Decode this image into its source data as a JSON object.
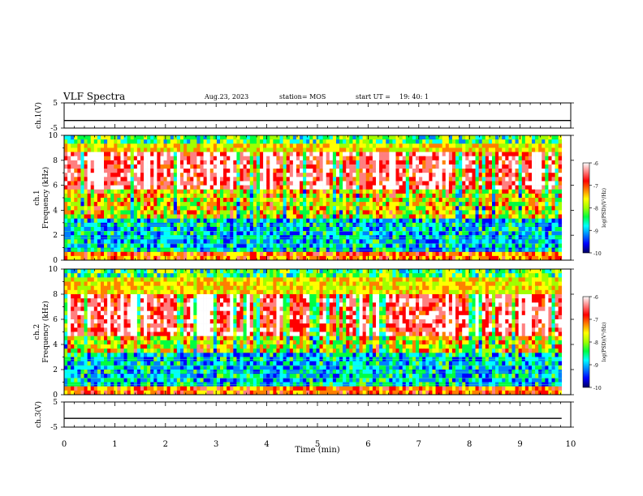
{
  "header": {
    "title": "VLF Spectra",
    "date": "Aug.23, 2023",
    "station": "station= MOS",
    "start_label": "start  UT =",
    "start_time": "19: 40: 1"
  },
  "chart_data": [
    {
      "type": "line",
      "panel": "ch1-waveform",
      "ylabel": "ch.1(V)",
      "ylim": [
        -5,
        5
      ],
      "yticks": [
        "5",
        "-5"
      ],
      "x": [
        0,
        10
      ],
      "values": [
        -2,
        -2
      ]
    },
    {
      "type": "heatmap",
      "panel": "ch1-spectrogram",
      "ylabel_top": "ch.1",
      "ylabel": "Frequency (kHz)",
      "ylim": [
        0,
        10
      ],
      "yticks": [
        "0",
        "2",
        "4",
        "6",
        "8",
        "10"
      ],
      "xlim": [
        0,
        10
      ],
      "data_extent_x": 9.82,
      "colorbar": {
        "label": "log(PSD)(V²/Hz)",
        "range": [
          -10,
          -6
        ],
        "ticks": [
          "-6",
          "-7",
          "-8",
          "-9",
          "-10"
        ],
        "colors": [
          "#000060",
          "#0000ff",
          "#0080ff",
          "#00ffff",
          "#00ff40",
          "#a0ff00",
          "#ffff00",
          "#ff8000",
          "#ff0000",
          "#ff8080",
          "#ffffff"
        ]
      }
    },
    {
      "type": "heatmap",
      "panel": "ch2-spectrogram",
      "ylabel_top": "ch.2",
      "ylabel": "Frequency (kHz)",
      "ylim": [
        0,
        10
      ],
      "yticks": [
        "0",
        "2",
        "4",
        "6",
        "8",
        "10"
      ],
      "xlim": [
        0,
        10
      ],
      "data_extent_x": 9.82,
      "colorbar": {
        "label": "log(PSD)(V²/Hz)",
        "range": [
          -10,
          -6
        ],
        "ticks": [
          "-6",
          "-7",
          "-8",
          "-9",
          "-10"
        ]
      }
    },
    {
      "type": "line",
      "panel": "ch3-waveform",
      "ylabel": "ch.3(V)",
      "ylim": [
        -5,
        5
      ],
      "yticks": [
        "5",
        "-5"
      ],
      "x": [
        0,
        9.82
      ],
      "values": [
        -1.5,
        -1.5
      ]
    }
  ],
  "x_axis": {
    "label": "Time (min)",
    "ticks": [
      "0",
      "1",
      "2",
      "3",
      "4",
      "5",
      "6",
      "7",
      "8",
      "9",
      "10"
    ]
  }
}
